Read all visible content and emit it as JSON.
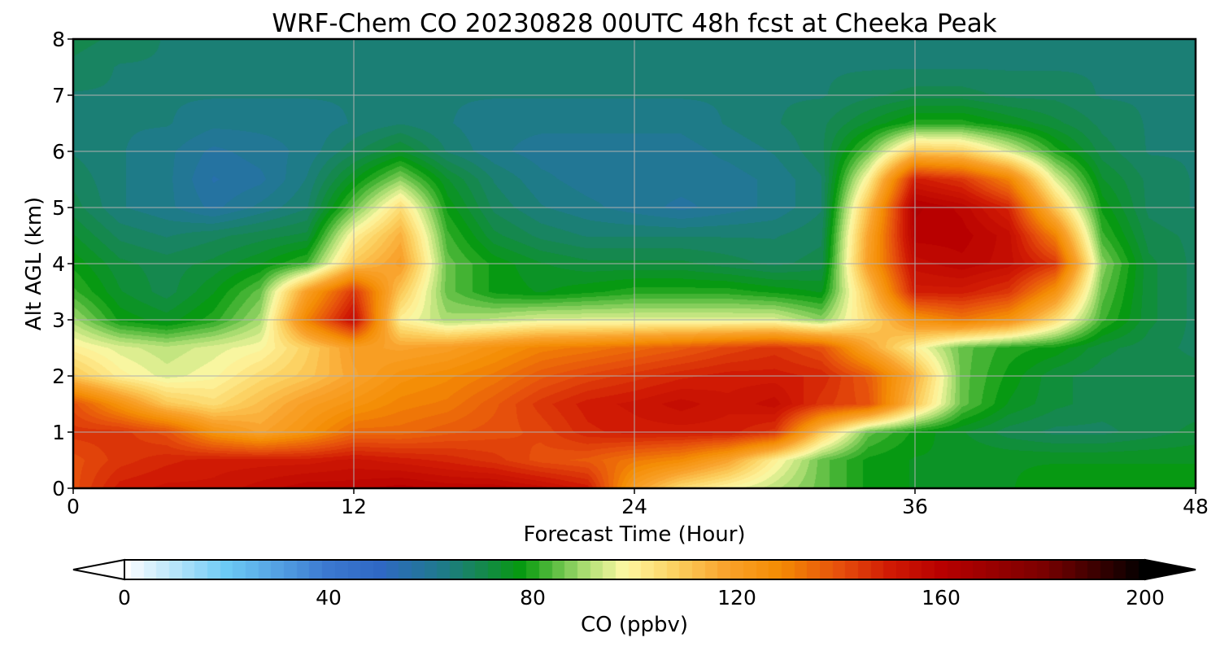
{
  "chart_data": {
    "type": "heatmap",
    "title": "WRF-Chem CO  20230828 00UTC 48h fcst at Cheeka Peak",
    "xlabel": "Forecast Time (Hour)",
    "ylabel": "Alt AGL (km)",
    "xlim": [
      0,
      48
    ],
    "ylim": [
      0,
      8
    ],
    "xticks": [
      0,
      12,
      24,
      36,
      48
    ],
    "xtick_labels": [
      "0",
      "12",
      "24",
      "36",
      "48"
    ],
    "yticks": [
      0,
      1,
      2,
      3,
      4,
      5,
      6,
      7,
      8
    ],
    "ytick_labels": [
      "0",
      "1",
      "2",
      "3",
      "4",
      "5",
      "6",
      "7",
      "8"
    ],
    "grid": true,
    "z_units": "ppbv",
    "x": [
      0,
      2,
      4,
      6,
      8,
      10,
      12,
      14,
      16,
      18,
      20,
      22,
      24,
      26,
      28,
      30,
      32,
      34,
      36,
      38,
      40,
      42,
      44,
      46,
      48
    ],
    "y": [
      0,
      0.5,
      1,
      1.5,
      2,
      2.5,
      3,
      3.5,
      4,
      4.5,
      5,
      5.5,
      6,
      6.5,
      7,
      7.5,
      8
    ],
    "z": [
      [
        140,
        150,
        152,
        152,
        155,
        158,
        158,
        160,
        158,
        158,
        155,
        150,
        120,
        105,
        98,
        92,
        85,
        78,
        76,
        76,
        76,
        78,
        78,
        78,
        78
      ],
      [
        140,
        145,
        148,
        150,
        150,
        150,
        152,
        150,
        148,
        145,
        140,
        138,
        132,
        128,
        118,
        100,
        85,
        78,
        76,
        76,
        76,
        76,
        76,
        76,
        76
      ],
      [
        145,
        145,
        140,
        125,
        118,
        125,
        135,
        135,
        138,
        140,
        142,
        148,
        150,
        150,
        150,
        145,
        110,
        85,
        78,
        74,
        70,
        68,
        68,
        70,
        72
      ],
      [
        140,
        125,
        110,
        105,
        112,
        120,
        125,
        130,
        132,
        138,
        145,
        150,
        152,
        155,
        152,
        155,
        145,
        140,
        110,
        85,
        76,
        72,
        70,
        70,
        70
      ],
      [
        110,
        100,
        95,
        98,
        105,
        110,
        118,
        125,
        128,
        132,
        138,
        142,
        145,
        148,
        150,
        150,
        148,
        138,
        115,
        85,
        78,
        72,
        70,
        70,
        70
      ],
      [
        100,
        95,
        92,
        95,
        98,
        108,
        120,
        118,
        120,
        125,
        130,
        132,
        135,
        138,
        142,
        145,
        140,
        118,
        100,
        85,
        80,
        78,
        72,
        70,
        68
      ],
      [
        90,
        78,
        75,
        80,
        90,
        130,
        155,
        100,
        90,
        92,
        95,
        95,
        95,
        95,
        95,
        95,
        88,
        105,
        125,
        132,
        125,
        105,
        82,
        72,
        68
      ],
      [
        82,
        74,
        70,
        76,
        85,
        120,
        145,
        110,
        85,
        78,
        76,
        78,
        80,
        80,
        80,
        78,
        76,
        110,
        150,
        150,
        145,
        125,
        85,
        72,
        68
      ],
      [
        78,
        72,
        70,
        72,
        76,
        82,
        110,
        120,
        85,
        78,
        74,
        72,
        72,
        72,
        70,
        68,
        70,
        120,
        155,
        158,
        155,
        145,
        88,
        72,
        68
      ],
      [
        74,
        68,
        66,
        68,
        70,
        72,
        100,
        115,
        82,
        72,
        68,
        66,
        66,
        66,
        66,
        66,
        68,
        118,
        160,
        160,
        155,
        130,
        82,
        70,
        68
      ],
      [
        70,
        64,
        62,
        58,
        62,
        66,
        85,
        105,
        78,
        68,
        64,
        62,
        60,
        58,
        60,
        62,
        66,
        112,
        162,
        158,
        148,
        110,
        78,
        68,
        66
      ],
      [
        68,
        64,
        62,
        56,
        58,
        64,
        76,
        88,
        74,
        66,
        62,
        60,
        60,
        60,
        60,
        62,
        66,
        100,
        150,
        145,
        130,
        95,
        74,
        68,
        66
      ],
      [
        66,
        64,
        62,
        58,
        60,
        62,
        68,
        74,
        66,
        62,
        60,
        60,
        60,
        60,
        62,
        64,
        68,
        85,
        110,
        108,
        95,
        80,
        70,
        66,
        66
      ],
      [
        66,
        64,
        64,
        62,
        62,
        62,
        64,
        66,
        64,
        62,
        62,
        62,
        62,
        62,
        64,
        66,
        68,
        74,
        80,
        80,
        76,
        72,
        68,
        66,
        66
      ],
      [
        66,
        66,
        64,
        64,
        64,
        64,
        64,
        64,
        64,
        64,
        64,
        64,
        64,
        64,
        64,
        66,
        66,
        68,
        70,
        70,
        68,
        68,
        66,
        66,
        66
      ],
      [
        68,
        66,
        66,
        64,
        64,
        64,
        64,
        64,
        64,
        64,
        64,
        64,
        64,
        64,
        64,
        64,
        66,
        66,
        66,
        66,
        66,
        66,
        66,
        66,
        66
      ],
      [
        70,
        68,
        66,
        66,
        66,
        66,
        66,
        64,
        64,
        64,
        64,
        64,
        64,
        64,
        64,
        64,
        64,
        66,
        66,
        66,
        66,
        66,
        66,
        66,
        66
      ]
    ],
    "colorbar": {
      "label": "CO  (ppbv)",
      "min": 0,
      "max": 200,
      "ticks": [
        0,
        40,
        80,
        120,
        160,
        200
      ],
      "tick_labels": [
        "0",
        "40",
        "80",
        "120",
        "160",
        "200"
      ],
      "extend": "both",
      "colors": [
        {
          "v": 0,
          "c": "#ffffff"
        },
        {
          "v": 20,
          "c": "#6ccaf5"
        },
        {
          "v": 40,
          "c": "#3b78d0"
        },
        {
          "v": 50,
          "c": "#2f68c4"
        },
        {
          "v": 62,
          "c": "#1f7a8c"
        },
        {
          "v": 70,
          "c": "#15884e"
        },
        {
          "v": 78,
          "c": "#069a0e"
        },
        {
          "v": 90,
          "c": "#a8dc70"
        },
        {
          "v": 98,
          "c": "#fdf8a3"
        },
        {
          "v": 108,
          "c": "#fcd060"
        },
        {
          "v": 118,
          "c": "#f9a22b"
        },
        {
          "v": 128,
          "c": "#f48d04"
        },
        {
          "v": 140,
          "c": "#e6500c"
        },
        {
          "v": 150,
          "c": "#d01a04"
        },
        {
          "v": 160,
          "c": "#b80000"
        },
        {
          "v": 180,
          "c": "#7a0000"
        },
        {
          "v": 200,
          "c": "#000000"
        }
      ]
    }
  }
}
